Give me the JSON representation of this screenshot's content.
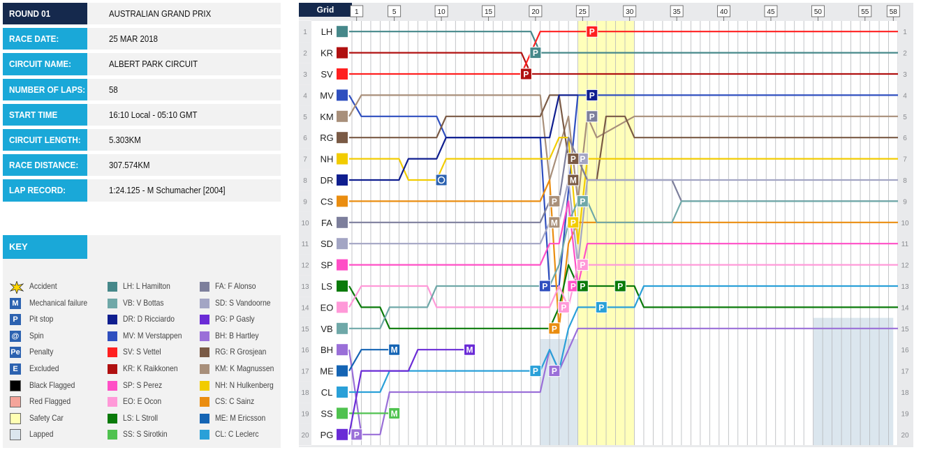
{
  "info": {
    "rows": [
      {
        "label": "ROUND 01",
        "value": "AUSTRALIAN GRAND PRIX",
        "style": "dark"
      },
      {
        "label": "RACE DATE:",
        "value": "25 MAR 2018",
        "style": "cyan"
      },
      {
        "label": "CIRCUIT NAME:",
        "value": "ALBERT PARK CIRCUIT",
        "style": "cyan"
      },
      {
        "label": "NUMBER OF LAPS:",
        "value": "58",
        "style": "cyan"
      },
      {
        "label": "START TIME",
        "value": "16:10 Local - 05:10 GMT",
        "style": "cyan"
      },
      {
        "label": "CIRCUIT LENGTH:",
        "value": "5.303KM",
        "style": "cyan"
      },
      {
        "label": "RACE DISTANCE:",
        "value": "307.574KM",
        "style": "cyan"
      },
      {
        "label": "LAP RECORD:",
        "value": "1:24.125 - M Schumacher [2004]",
        "style": "cyan"
      }
    ]
  },
  "key": {
    "title": "KEY",
    "events": [
      {
        "symbol": "accident-icon",
        "label": "Accident"
      },
      {
        "symbol": "M",
        "label": "Mechanical failure",
        "color": "#2c62b0"
      },
      {
        "symbol": "P",
        "label": "Pit stop",
        "color": "#2c62b0"
      },
      {
        "symbol": "spin-icon",
        "label": "Spin",
        "color": "#2c62b0"
      },
      {
        "symbol": "Pe",
        "label": "Penalty",
        "color": "#2c62b0"
      },
      {
        "symbol": "E",
        "label": "Excluded",
        "color": "#2c62b0"
      },
      {
        "symbol": "black-flag-swatch",
        "label": "Black Flagged",
        "color": "#000000"
      },
      {
        "symbol": "red-flag-swatch",
        "label": "Red Flagged",
        "color": "#f4a49a"
      },
      {
        "symbol": "safety-car-swatch",
        "label": "Safety Car",
        "color": "#ffffb3"
      },
      {
        "symbol": "lapped-swatch",
        "label": "Lapped",
        "color": "#dbe6ee"
      }
    ],
    "drivers_col1": [
      {
        "label": "LH: L Hamilton",
        "color": "#46888a"
      },
      {
        "label": "VB: V Bottas",
        "color": "#6fa8a8"
      },
      {
        "label": "DR: D Ricciardo",
        "color": "#0f1e8f"
      },
      {
        "label": "MV: M Verstappen",
        "color": "#2f4fbf"
      },
      {
        "label": "SV: S Vettel",
        "color": "#ff2020"
      },
      {
        "label": "KR: K Raikkonen",
        "color": "#b01010"
      },
      {
        "label": "SP: S Perez",
        "color": "#ff4fc6"
      },
      {
        "label": "EO: E Ocon",
        "color": "#ff99d8"
      },
      {
        "label": "LS: L Stroll",
        "color": "#0a7a0a"
      },
      {
        "label": "SS: S Sirotkin",
        "color": "#4fc24f"
      }
    ],
    "drivers_col2": [
      {
        "label": "FA: F Alonso",
        "color": "#7d7f9c"
      },
      {
        "label": "SD: S Vandoorne",
        "color": "#a3a5c4"
      },
      {
        "label": "PG: P Gasly",
        "color": "#6a2bd6"
      },
      {
        "label": "BH: B Hartley",
        "color": "#9a6fd8"
      },
      {
        "label": "RG: R Grosjean",
        "color": "#7a5a45"
      },
      {
        "label": "KM: K Magnussen",
        "color": "#a88f7a"
      },
      {
        "label": "NH: N Hulkenberg",
        "color": "#f2cc00"
      },
      {
        "label": "CS: C Sainz",
        "color": "#ea8d10"
      },
      {
        "label": "ME: M Ericsson",
        "color": "#1464b4"
      },
      {
        "label": "CL: C Leclerc",
        "color": "#2aa0d8"
      }
    ]
  },
  "chart_data": {
    "type": "line",
    "grid_label": "Grid",
    "laps_total": 58,
    "lap_tick_labels": [
      "1",
      "5",
      "10",
      "15",
      "20",
      "25",
      "30",
      "35",
      "40",
      "45",
      "50",
      "55",
      "58"
    ],
    "positions": [
      "1",
      "2",
      "3",
      "4",
      "5",
      "6",
      "7",
      "8",
      "9",
      "10",
      "11",
      "12",
      "13",
      "14",
      "15",
      "16",
      "17",
      "18",
      "19",
      "20"
    ],
    "grid_codes": [
      "LH",
      "KR",
      "SV",
      "MV",
      "KM",
      "RG",
      "NH",
      "DR",
      "CS",
      "FA",
      "SD",
      "SP",
      "LS",
      "EO",
      "VB",
      "BH",
      "ME",
      "CL",
      "SS",
      "PG"
    ],
    "grid_colors": [
      "#46888a",
      "#b01010",
      "#ff2020",
      "#2f4fbf",
      "#a88f7a",
      "#7a5a45",
      "#f2cc00",
      "#0f1e8f",
      "#ea8d10",
      "#7d7f9c",
      "#a3a5c4",
      "#ff4fc6",
      "#0a7a0a",
      "#ff99d8",
      "#6fa8a8",
      "#9a6fd8",
      "#1464b4",
      "#2aa0d8",
      "#4fc24f",
      "#6a2bd6"
    ],
    "safety_car_laps": [
      25,
      30
    ],
    "series": [
      {
        "code": "LH",
        "color": "#46888a",
        "positions": [
          [
            0,
            1
          ],
          [
            19,
            1
          ],
          [
            20,
            2
          ],
          [
            58,
            2
          ]
        ]
      },
      {
        "code": "KR",
        "color": "#b01010",
        "positions": [
          [
            0,
            2
          ],
          [
            18,
            2
          ],
          [
            19,
            3
          ],
          [
            58,
            3
          ]
        ]
      },
      {
        "code": "SV",
        "color": "#ff2020",
        "positions": [
          [
            0,
            3
          ],
          [
            18,
            3
          ],
          [
            20,
            1
          ],
          [
            58,
            1
          ]
        ]
      },
      {
        "code": "MV",
        "color": "#2f4fbf",
        "positions": [
          [
            0,
            4
          ],
          [
            1,
            5
          ],
          [
            9,
            5
          ],
          [
            10,
            6
          ],
          [
            20,
            6
          ],
          [
            21,
            13
          ],
          [
            22,
            13
          ],
          [
            24,
            4
          ],
          [
            58,
            4
          ]
        ]
      },
      {
        "code": "KM",
        "color": "#a88f7a",
        "positions": [
          [
            0,
            5
          ],
          [
            1,
            4
          ],
          [
            20,
            4
          ],
          [
            21,
            8
          ],
          [
            23,
            5
          ],
          [
            24,
            9
          ],
          [
            25,
            5
          ],
          [
            26,
            6
          ],
          [
            30,
            5
          ],
          [
            58,
            5
          ]
        ]
      },
      {
        "code": "RG",
        "color": "#7a5a45",
        "positions": [
          [
            0,
            6
          ],
          [
            9,
            6
          ],
          [
            10,
            5
          ],
          [
            20,
            5
          ],
          [
            21,
            4
          ],
          [
            22,
            4
          ],
          [
            23,
            7
          ],
          [
            24,
            7
          ],
          [
            25,
            8
          ],
          [
            26,
            8
          ],
          [
            27,
            5
          ],
          [
            29,
            5
          ],
          [
            30,
            6
          ],
          [
            58,
            6
          ]
        ]
      },
      {
        "code": "NH",
        "color": "#f2cc00",
        "positions": [
          [
            0,
            7
          ],
          [
            5,
            7
          ],
          [
            6,
            8
          ],
          [
            9,
            8
          ],
          [
            10,
            7
          ],
          [
            21,
            7
          ],
          [
            22,
            6
          ],
          [
            23,
            6
          ],
          [
            24,
            11
          ],
          [
            25,
            7
          ],
          [
            58,
            7
          ]
        ]
      },
      {
        "code": "DR",
        "color": "#0f1e8f",
        "positions": [
          [
            0,
            8
          ],
          [
            5,
            8
          ],
          [
            6,
            7
          ],
          [
            9,
            7
          ],
          [
            10,
            6
          ],
          [
            21,
            6
          ],
          [
            22,
            4
          ],
          [
            24,
            4
          ]
        ]
      },
      {
        "code": "CS",
        "color": "#ea8d10",
        "positions": [
          [
            0,
            9
          ],
          [
            20,
            9
          ],
          [
            21,
            8
          ],
          [
            22,
            15
          ],
          [
            23,
            11
          ],
          [
            24,
            10
          ],
          [
            58,
            10
          ]
        ]
      },
      {
        "code": "FA",
        "color": "#7d7f9c",
        "positions": [
          [
            0,
            10
          ],
          [
            20,
            10
          ],
          [
            21,
            9
          ],
          [
            22,
            9
          ],
          [
            23,
            6
          ],
          [
            24,
            7
          ],
          [
            25,
            8
          ],
          [
            34,
            8
          ],
          [
            35,
            9
          ],
          [
            58,
            9
          ]
        ]
      },
      {
        "code": "SD",
        "color": "#a3a5c4",
        "positions": [
          [
            0,
            11
          ],
          [
            20,
            11
          ],
          [
            21,
            10
          ],
          [
            22,
            10
          ],
          [
            23,
            8
          ],
          [
            24,
            12
          ],
          [
            25,
            8
          ],
          [
            34,
            8
          ],
          [
            35,
            8
          ],
          [
            58,
            8
          ]
        ]
      },
      {
        "code": "SP",
        "color": "#ff4fc6",
        "positions": [
          [
            0,
            12
          ],
          [
            20,
            12
          ],
          [
            21,
            11
          ],
          [
            22,
            11
          ],
          [
            23,
            9
          ],
          [
            24,
            13
          ],
          [
            25,
            11
          ],
          [
            58,
            11
          ]
        ]
      },
      {
        "code": "LS",
        "color": "#0a7a0a",
        "positions": [
          [
            0,
            13
          ],
          [
            1,
            14
          ],
          [
            3,
            14
          ],
          [
            4,
            15
          ],
          [
            21,
            15
          ],
          [
            22,
            14
          ],
          [
            23,
            12
          ],
          [
            24,
            13
          ],
          [
            30,
            13
          ],
          [
            31,
            14
          ],
          [
            58,
            14
          ]
        ]
      },
      {
        "code": "EO",
        "color": "#ff99d8",
        "positions": [
          [
            0,
            14
          ],
          [
            1,
            13
          ],
          [
            8,
            13
          ],
          [
            9,
            14
          ],
          [
            21,
            14
          ],
          [
            22,
            13
          ],
          [
            23,
            14
          ],
          [
            24,
            12
          ],
          [
            58,
            12
          ]
        ]
      },
      {
        "code": "VB",
        "color": "#6fa8a8",
        "positions": [
          [
            0,
            15
          ],
          [
            3,
            15
          ],
          [
            4,
            14
          ],
          [
            8,
            14
          ],
          [
            9,
            13
          ],
          [
            21,
            13
          ],
          [
            22,
            12
          ],
          [
            23,
            10
          ],
          [
            24,
            9
          ],
          [
            25,
            9
          ],
          [
            26,
            10
          ],
          [
            34,
            10
          ],
          [
            35,
            9
          ],
          [
            58,
            9
          ]
        ]
      },
      {
        "code": "BH",
        "color": "#9a6fd8",
        "positions": [
          [
            0,
            16
          ],
          [
            1,
            20
          ],
          [
            3,
            20
          ],
          [
            4,
            18
          ],
          [
            20,
            18
          ],
          [
            21,
            16
          ],
          [
            22,
            17
          ],
          [
            23,
            16
          ],
          [
            24,
            15
          ],
          [
            58,
            15
          ]
        ]
      },
      {
        "code": "ME",
        "color": "#1464b4",
        "positions": [
          [
            0,
            17
          ],
          [
            1,
            16
          ],
          [
            5,
            16
          ]
        ]
      },
      {
        "code": "CL",
        "color": "#2aa0d8",
        "positions": [
          [
            0,
            18
          ],
          [
            3,
            18
          ],
          [
            4,
            17
          ],
          [
            20,
            17
          ],
          [
            21,
            16
          ],
          [
            22,
            17
          ],
          [
            23,
            15
          ],
          [
            24,
            14
          ],
          [
            30,
            14
          ],
          [
            31,
            13
          ],
          [
            58,
            13
          ]
        ]
      },
      {
        "code": "SS",
        "color": "#4fc24f",
        "positions": [
          [
            0,
            19
          ],
          [
            4,
            19
          ],
          [
            5,
            19
          ]
        ]
      },
      {
        "code": "PG",
        "color": "#6a2bd6",
        "positions": [
          [
            0,
            20
          ],
          [
            1,
            17
          ],
          [
            6,
            17
          ],
          [
            7,
            16
          ],
          [
            13,
            16
          ]
        ]
      }
    ],
    "markers": [
      {
        "type": "P",
        "lap": 19,
        "pos": 3,
        "color": "#b01010"
      },
      {
        "type": "P",
        "lap": 20,
        "pos": 2,
        "color": "#46888a"
      },
      {
        "type": "P",
        "lap": 26,
        "pos": 1,
        "color": "#ff2020"
      },
      {
        "type": "P",
        "lap": 26,
        "pos": 4,
        "color": "#0f1e8f"
      },
      {
        "type": "P",
        "lap": 26,
        "pos": 5,
        "color": "#7d7f9c"
      },
      {
        "type": "P",
        "lap": 25,
        "pos": 7,
        "color": "#a3a5c4"
      },
      {
        "type": "P",
        "lap": 24,
        "pos": 7,
        "color": "#7a5a45"
      },
      {
        "type": "M",
        "lap": 24,
        "pos": 8,
        "color": "#7a5a45"
      },
      {
        "type": "spin",
        "lap": 10,
        "pos": 8,
        "color": "#2c62b0"
      },
      {
        "type": "P",
        "lap": 22,
        "pos": 9,
        "color": "#a88f7a"
      },
      {
        "type": "M",
        "lap": 22,
        "pos": 10,
        "color": "#a88f7a"
      },
      {
        "type": "P",
        "lap": 25,
        "pos": 9,
        "color": "#6fa8a8"
      },
      {
        "type": "P",
        "lap": 24,
        "pos": 10,
        "color": "#f2cc00"
      },
      {
        "type": "P",
        "lap": 21,
        "pos": 13,
        "color": "#2f4fbf"
      },
      {
        "type": "P",
        "lap": 24,
        "pos": 13,
        "color": "#ff4fc6"
      },
      {
        "type": "P",
        "lap": 25,
        "pos": 13,
        "color": "#0a7a0a"
      },
      {
        "type": "P",
        "lap": 29,
        "pos": 13,
        "color": "#0a7a0a"
      },
      {
        "type": "P",
        "lap": 25,
        "pos": 12,
        "color": "#ff99d8"
      },
      {
        "type": "P",
        "lap": 23,
        "pos": 14,
        "color": "#ff99d8"
      },
      {
        "type": "P",
        "lap": 27,
        "pos": 14,
        "color": "#2aa0d8"
      },
      {
        "type": "P",
        "lap": 22,
        "pos": 15,
        "color": "#ea8d10"
      },
      {
        "type": "M",
        "lap": 5,
        "pos": 16,
        "color": "#1464b4"
      },
      {
        "type": "M",
        "lap": 13,
        "pos": 16,
        "color": "#6a2bd6"
      },
      {
        "type": "P",
        "lap": 20,
        "pos": 17,
        "color": "#2aa0d8"
      },
      {
        "type": "P",
        "lap": 22,
        "pos": 17,
        "color": "#9a6fd8"
      },
      {
        "type": "M",
        "lap": 5,
        "pos": 19,
        "color": "#4fc24f"
      },
      {
        "type": "P",
        "lap": 1,
        "pos": 20,
        "color": "#9a6fd8"
      }
    ]
  }
}
